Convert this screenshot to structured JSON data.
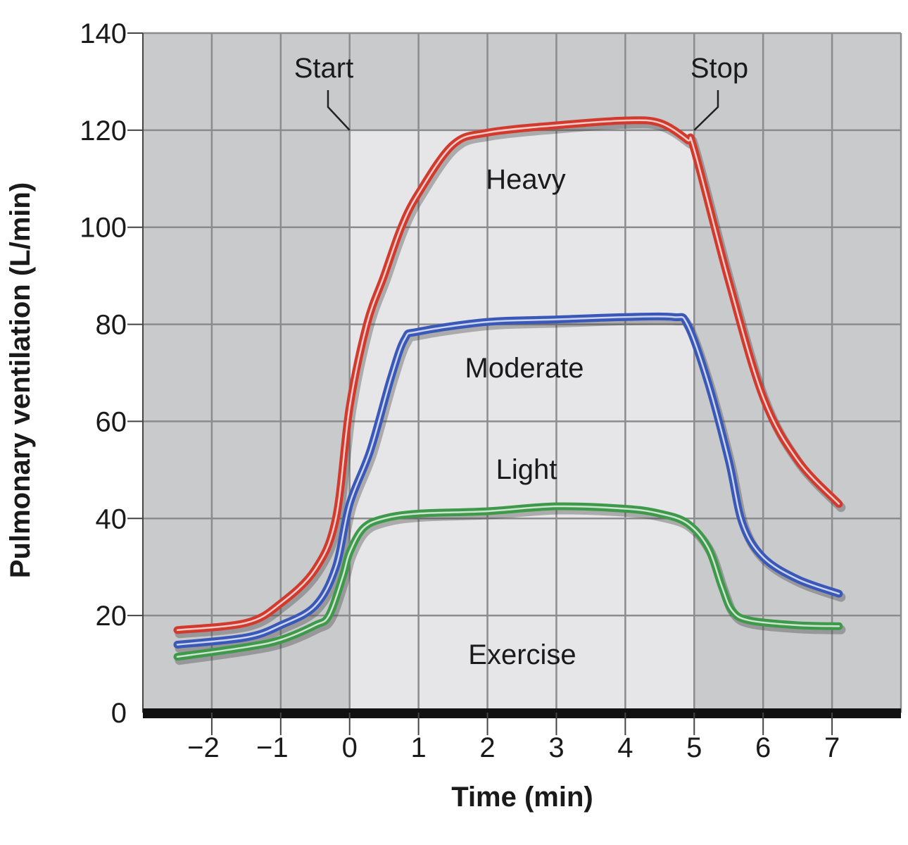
{
  "chart_data": {
    "type": "line",
    "title": "",
    "xlabel": "Time (min)",
    "ylabel": "Pulmonary ventilation (L/min)",
    "xlim": [
      -3,
      8
    ],
    "ylim": [
      0,
      140
    ],
    "xticks": [
      "−2",
      "−1",
      "0",
      "1",
      "2",
      "3",
      "4",
      "5",
      "6",
      "7"
    ],
    "xtick_values": [
      -2,
      -1,
      0,
      1,
      2,
      3,
      4,
      5,
      6,
      7
    ],
    "yticks": [
      "0",
      "20",
      "40",
      "60",
      "80",
      "100",
      "120",
      "140"
    ],
    "ytick_values": [
      0,
      20,
      40,
      60,
      80,
      100,
      120,
      140
    ],
    "grid": true,
    "exercise_period": {
      "start": 0,
      "stop": 5,
      "label": "Exercise"
    },
    "annotations": {
      "start": "Start",
      "stop": "Stop"
    },
    "colors": {
      "plot_bg": "#c9cacc",
      "exercise_bg": "#e6e6e8",
      "grid": "#8c8c8e",
      "axis": "#111111"
    },
    "series": [
      {
        "name": "Heavy",
        "color": "#d23a2e",
        "x": [
          -2.5,
          -1.5,
          -1,
          -0.5,
          -0.2,
          0,
          0.25,
          0.5,
          0.75,
          1,
          1.5,
          2,
          3,
          4,
          4.5,
          4.9,
          5,
          5.5,
          6,
          6.5,
          7.1
        ],
        "y": [
          17,
          18.5,
          22.5,
          29.5,
          40,
          63,
          80,
          90,
          100,
          107,
          117,
          119.5,
          121,
          122,
          121.5,
          118,
          116,
          89,
          65,
          52,
          43
        ]
      },
      {
        "name": "Moderate",
        "color": "#3a58b8",
        "x": [
          -2.5,
          -1.5,
          -1,
          -0.5,
          -0.2,
          0,
          0.3,
          0.6,
          0.8,
          1,
          2,
          3,
          4,
          4.7,
          4.9,
          5.2,
          5.5,
          5.7,
          6,
          6.5,
          7.1
        ],
        "y": [
          14,
          15.5,
          18,
          22,
          30,
          43,
          54,
          69,
          77,
          78.5,
          80.5,
          81,
          81.5,
          81.5,
          80,
          68,
          52,
          39,
          32,
          27.5,
          24.5
        ]
      },
      {
        "name": "Light",
        "color": "#3e9a4a",
        "x": [
          -2.5,
          -1.5,
          -1,
          -0.5,
          -0.3,
          -0.1,
          0,
          0.2,
          0.5,
          1,
          2,
          3,
          4,
          4.5,
          4.9,
          5.2,
          5.4,
          5.55,
          5.8,
          6.5,
          7.1
        ],
        "y": [
          11.5,
          13.5,
          15,
          18,
          20,
          28,
          33,
          38,
          40,
          41,
          41.5,
          42.5,
          42,
          41,
          39,
          34,
          26,
          21,
          19,
          18,
          17.8
        ]
      }
    ]
  }
}
